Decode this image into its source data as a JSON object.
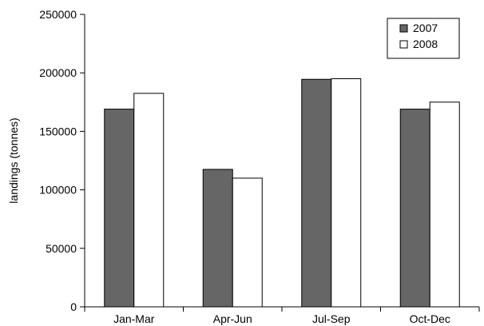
{
  "chart_data": {
    "type": "bar",
    "title": "",
    "xlabel": "",
    "ylabel": "landings (tonnes)",
    "categories": [
      "Jan-Mar",
      "Apr-Jun",
      "Jul-Sep",
      "Oct-Dec"
    ],
    "series": [
      {
        "name": "2007",
        "color": "#666666",
        "values": [
          169000,
          117500,
          194500,
          169000
        ]
      },
      {
        "name": "2008",
        "color": "#ffffff",
        "values": [
          182500,
          110000,
          195000,
          175000
        ]
      }
    ],
    "ylim": [
      0,
      250000
    ],
    "yticks": [
      0,
      50000,
      100000,
      150000,
      200000,
      250000
    ],
    "ytick_labels": [
      "0",
      "50000",
      "100000",
      "150000",
      "200000",
      "250000"
    ],
    "grid": false,
    "legend_position": "top-right"
  }
}
